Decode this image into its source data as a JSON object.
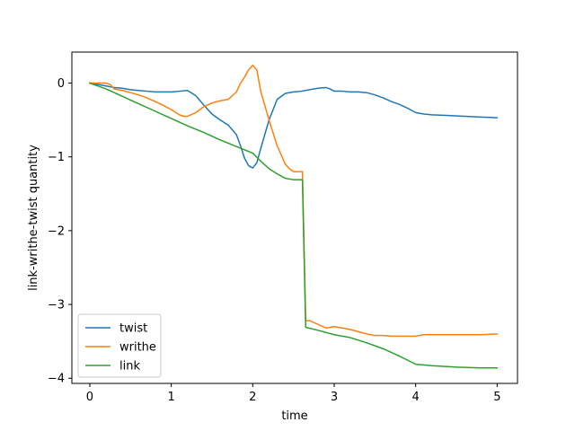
{
  "chart_data": {
    "type": "line",
    "title": "",
    "xlabel": "time",
    "ylabel": "link-writhe-twist quantity",
    "xlim": [
      -0.22,
      5.25
    ],
    "ylim": [
      -4.07,
      0.42
    ],
    "xticks": [
      0,
      1,
      2,
      3,
      4,
      5
    ],
    "yticks": [
      -4,
      -3,
      -2,
      -1,
      0
    ],
    "xtick_labels": [
      "0",
      "1",
      "2",
      "3",
      "4",
      "5"
    ],
    "ytick_labels": [
      "−4",
      "−3",
      "−2",
      "−1",
      "0"
    ],
    "grid": false,
    "legend_position": "lower-left",
    "series": [
      {
        "name": "twist",
        "color": "#1f77b4",
        "x": [
          0,
          0.1,
          0.2,
          0.3,
          0.4,
          0.5,
          0.6,
          0.7,
          0.8,
          0.9,
          1.0,
          1.1,
          1.2,
          1.3,
          1.4,
          1.5,
          1.6,
          1.7,
          1.8,
          1.85,
          1.9,
          1.95,
          2.0,
          2.05,
          2.1,
          2.2,
          2.3,
          2.4,
          2.5,
          2.6,
          2.7,
          2.8,
          2.9,
          2.95,
          3.0,
          3.1,
          3.2,
          3.3,
          3.4,
          3.5,
          3.6,
          3.7,
          3.8,
          3.9,
          4.0,
          4.1,
          4.2,
          4.4,
          4.6,
          4.8,
          5.0
        ],
        "y": [
          0,
          -0.02,
          -0.04,
          -0.06,
          -0.07,
          -0.09,
          -0.1,
          -0.11,
          -0.12,
          -0.12,
          -0.12,
          -0.11,
          -0.1,
          -0.17,
          -0.3,
          -0.42,
          -0.5,
          -0.57,
          -0.7,
          -0.85,
          -1.02,
          -1.12,
          -1.15,
          -1.08,
          -0.88,
          -0.5,
          -0.22,
          -0.14,
          -0.12,
          -0.11,
          -0.09,
          -0.07,
          -0.06,
          -0.08,
          -0.11,
          -0.11,
          -0.12,
          -0.12,
          -0.13,
          -0.16,
          -0.2,
          -0.25,
          -0.29,
          -0.34,
          -0.4,
          -0.42,
          -0.43,
          -0.44,
          -0.45,
          -0.46,
          -0.47
        ]
      },
      {
        "name": "writhe",
        "color": "#ff7f0e",
        "x": [
          0,
          0.1,
          0.15,
          0.2,
          0.25,
          0.3,
          0.4,
          0.5,
          0.6,
          0.7,
          0.8,
          0.9,
          1.0,
          1.1,
          1.15,
          1.2,
          1.3,
          1.4,
          1.5,
          1.6,
          1.7,
          1.8,
          1.85,
          1.9,
          1.95,
          2.0,
          2.05,
          2.1,
          2.2,
          2.3,
          2.4,
          2.45,
          2.5,
          2.6,
          2.61,
          2.65,
          2.7,
          2.8,
          2.9,
          3.0,
          3.1,
          3.2,
          3.3,
          3.4,
          3.5,
          3.6,
          3.7,
          3.8,
          3.9,
          4.0,
          4.1,
          4.2,
          4.4,
          4.6,
          4.8,
          5.0
        ],
        "y": [
          0,
          0.0,
          0.0,
          0.0,
          -0.02,
          -0.08,
          -0.1,
          -0.13,
          -0.16,
          -0.2,
          -0.25,
          -0.3,
          -0.36,
          -0.43,
          -0.45,
          -0.45,
          -0.4,
          -0.32,
          -0.27,
          -0.24,
          -0.22,
          -0.12,
          0.0,
          0.08,
          0.18,
          0.24,
          0.18,
          -0.12,
          -0.5,
          -0.85,
          -1.1,
          -1.16,
          -1.2,
          -1.2,
          -1.2,
          -3.22,
          -3.22,
          -3.27,
          -3.32,
          -3.3,
          -3.32,
          -3.34,
          -3.37,
          -3.4,
          -3.42,
          -3.42,
          -3.43,
          -3.43,
          -3.43,
          -3.43,
          -3.41,
          -3.41,
          -3.41,
          -3.41,
          -3.41,
          -3.4
        ]
      },
      {
        "name": "link",
        "color": "#2ca02c",
        "x": [
          0,
          0.2,
          0.4,
          0.6,
          0.8,
          1.0,
          1.2,
          1.4,
          1.6,
          1.8,
          2.0,
          2.1,
          2.2,
          2.3,
          2.4,
          2.5,
          2.58,
          2.6,
          2.61,
          2.65,
          2.8,
          3.0,
          3.2,
          3.4,
          3.6,
          3.8,
          4.0,
          4.2,
          4.5,
          4.8,
          5.0
        ],
        "y": [
          0,
          -0.08,
          -0.18,
          -0.28,
          -0.38,
          -0.48,
          -0.58,
          -0.67,
          -0.77,
          -0.86,
          -0.95,
          -1.06,
          -1.16,
          -1.23,
          -1.29,
          -1.31,
          -1.31,
          -1.31,
          -1.31,
          -3.31,
          -3.35,
          -3.41,
          -3.45,
          -3.52,
          -3.6,
          -3.7,
          -3.81,
          -3.83,
          -3.85,
          -3.86,
          -3.86
        ]
      }
    ]
  }
}
